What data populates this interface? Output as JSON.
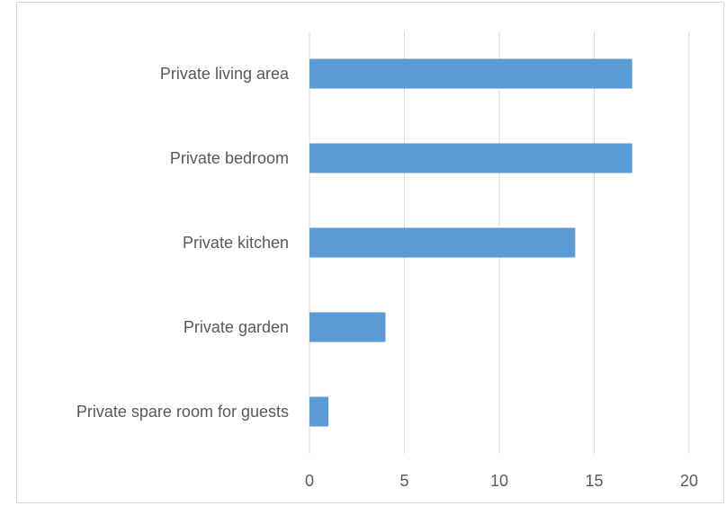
{
  "chart_data": {
    "type": "bar",
    "orientation": "horizontal",
    "categories": [
      "Private living area",
      "Private bedroom",
      "Private kitchen",
      "Private garden",
      "Private spare room for guests"
    ],
    "values": [
      17,
      17,
      14,
      4,
      1
    ],
    "xlim": [
      0,
      20
    ],
    "x_ticks": [
      "0",
      "5",
      "10",
      "15",
      "20"
    ],
    "grid": "vertical",
    "legend": "none",
    "bar_color": "#5b9bd5"
  }
}
